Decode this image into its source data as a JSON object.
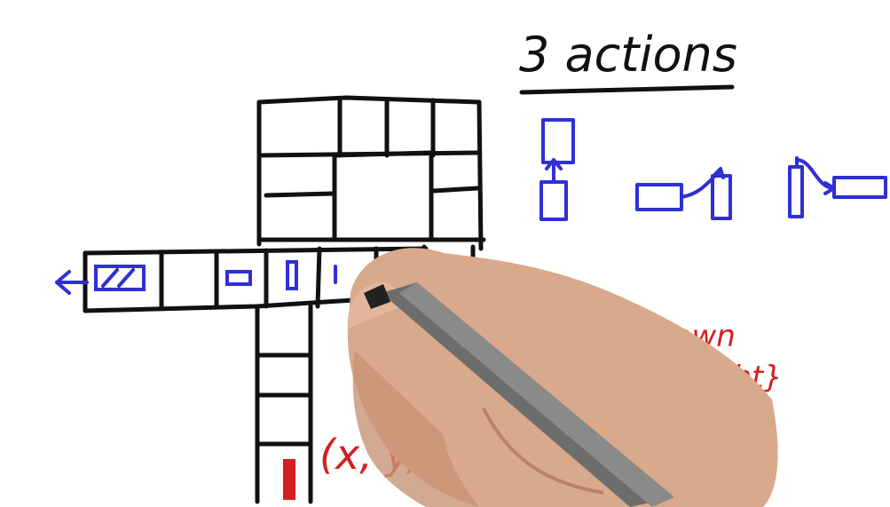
{
  "title_text": "3 actions",
  "orientation_set_text_line1": "θ{Up, Down",
  "orientation_set_text_line2": "Left, Right}",
  "state_tuple_text": "(x, y, θ)",
  "colors": {
    "black_ink": "#111111",
    "blue_ink": "#2f2fd6",
    "red_ink": "#d21f1f",
    "skin": "#d9a98b",
    "marker_body": "#6d6d6d"
  },
  "icons": [
    "left-arrow-icon",
    "car-icon",
    "hand-icon",
    "marker-pen-icon"
  ]
}
